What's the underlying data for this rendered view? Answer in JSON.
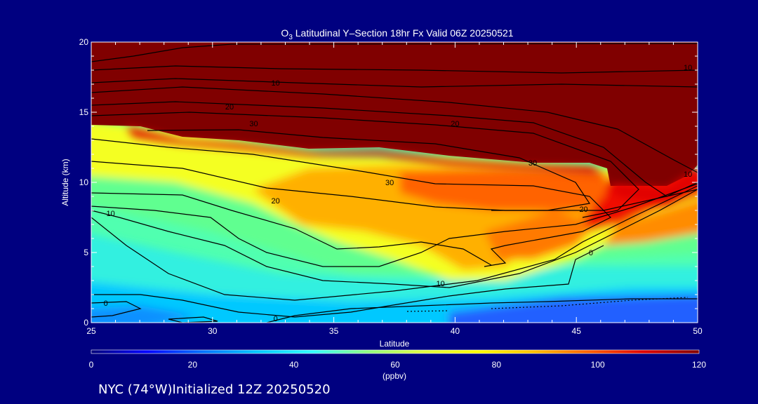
{
  "chart_data": {
    "type": "heatmap",
    "title_prefix": "O",
    "title_sub": "3",
    "title_rest": " Latitudinal Y–Section 18hr  Fx Valid 06Z 20250521",
    "xlabel": "Latitude",
    "ylabel": "Altitude (km)",
    "xlim": [
      25,
      50
    ],
    "ylim": [
      0,
      20
    ],
    "x_ticks": [
      25,
      30,
      35,
      40,
      45,
      50
    ],
    "y_ticks": [
      0,
      5,
      10,
      15,
      20
    ],
    "colorbar": {
      "label": "(ppbv)",
      "range": [
        0,
        120
      ],
      "ticks": [
        0,
        20,
        40,
        60,
        80,
        100,
        120
      ],
      "colors": [
        "#00007a",
        "#0000ff",
        "#0070ff",
        "#00c8ff",
        "#30ffff",
        "#90ff80",
        "#e0ff40",
        "#ffff00",
        "#ffc000",
        "#ff6000",
        "#e00000",
        "#800000"
      ]
    },
    "contour_levels": [
      0,
      10,
      20,
      30
    ],
    "contour_labels": [
      {
        "text": "0",
        "lat": 25.6,
        "alt": 1.4
      },
      {
        "text": "0",
        "lat": 32.6,
        "alt": 0.3
      },
      {
        "text": "10",
        "lat": 25.8,
        "alt": 7.8
      },
      {
        "text": "10",
        "lat": 39.4,
        "alt": 2.8
      },
      {
        "text": "20",
        "lat": 30.7,
        "alt": 15.4
      },
      {
        "text": "20",
        "lat": 32.6,
        "alt": 8.7
      },
      {
        "text": "20",
        "lat": 45.3,
        "alt": 8.1
      },
      {
        "text": "30",
        "lat": 31.7,
        "alt": 14.2
      },
      {
        "text": "30",
        "lat": 37.3,
        "alt": 10.0
      },
      {
        "text": "30",
        "lat": 43.2,
        "alt": 11.4
      },
      {
        "text": "20",
        "lat": 40.0,
        "alt": 14.2
      },
      {
        "text": "10",
        "lat": 32.6,
        "alt": 17.1
      },
      {
        "text": "10",
        "lat": 49.6,
        "alt": 10.6
      },
      {
        "text": "0",
        "lat": 45.6,
        "alt": 5.0
      },
      {
        "text": "10",
        "lat": 49.6,
        "alt": 18.2
      }
    ]
  },
  "footer": {
    "site": "NYC (74°W)Initialized 12Z 20250520"
  }
}
